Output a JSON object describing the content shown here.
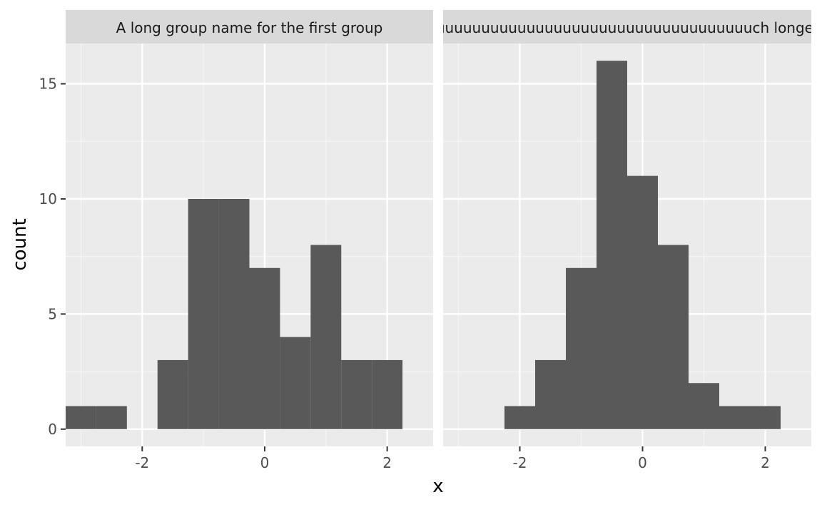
{
  "chart_data": {
    "type": "bar",
    "xlabel": "x",
    "ylabel": "count",
    "xlim": [
      -3.25,
      2.75
    ],
    "ylim": [
      -0.75,
      16.75
    ],
    "x_ticks": [
      -2,
      0,
      2
    ],
    "y_ticks": [
      0,
      5,
      10,
      15
    ],
    "bin_width": 0.5,
    "panels": [
      {
        "name": "A long group name for the first group",
        "bins": [
          {
            "x_start": -3.25,
            "x_end": -2.75,
            "count": 1
          },
          {
            "x_start": -2.75,
            "x_end": -2.25,
            "count": 1
          },
          {
            "x_start": -2.25,
            "x_end": -1.75,
            "count": 0
          },
          {
            "x_start": -1.75,
            "x_end": -1.25,
            "count": 3
          },
          {
            "x_start": -1.25,
            "x_end": -0.75,
            "count": 10
          },
          {
            "x_start": -0.75,
            "x_end": -0.25,
            "count": 10
          },
          {
            "x_start": -0.25,
            "x_end": 0.25,
            "count": 7
          },
          {
            "x_start": 0.25,
            "x_end": 0.75,
            "count": 4
          },
          {
            "x_start": 0.75,
            "x_end": 1.25,
            "count": 8
          },
          {
            "x_start": 1.25,
            "x_end": 1.75,
            "count": 3
          },
          {
            "x_start": 1.75,
            "x_end": 2.25,
            "count": 3
          }
        ]
      },
      {
        "name": "A muuuuuuuuuuuuuuuuuuuuuuuuuuuuuuuuuuuuuuuuuuuuuuuuuuuuuuuuuuuch longer group name for the second group",
        "bins": [
          {
            "x_start": -2.25,
            "x_end": -1.75,
            "count": 1
          },
          {
            "x_start": -1.75,
            "x_end": -1.25,
            "count": 3
          },
          {
            "x_start": -1.25,
            "x_end": -0.75,
            "count": 7
          },
          {
            "x_start": -0.75,
            "x_end": -0.25,
            "count": 16
          },
          {
            "x_start": -0.25,
            "x_end": 0.25,
            "count": 11
          },
          {
            "x_start": 0.25,
            "x_end": 0.75,
            "count": 8
          },
          {
            "x_start": 0.75,
            "x_end": 1.25,
            "count": 2
          },
          {
            "x_start": 1.25,
            "x_end": 1.75,
            "count": 1
          },
          {
            "x_start": 1.75,
            "x_end": 2.25,
            "count": 1
          }
        ]
      }
    ],
    "grid": true,
    "legend": "none",
    "colors": {
      "bar_fill": "#595959",
      "panel_background": "#ebebeb",
      "strip_background": "#d9d9d9",
      "grid_major": "#ffffff",
      "grid_minor": "#f5f5f5",
      "tick_mark": "#333333"
    }
  }
}
